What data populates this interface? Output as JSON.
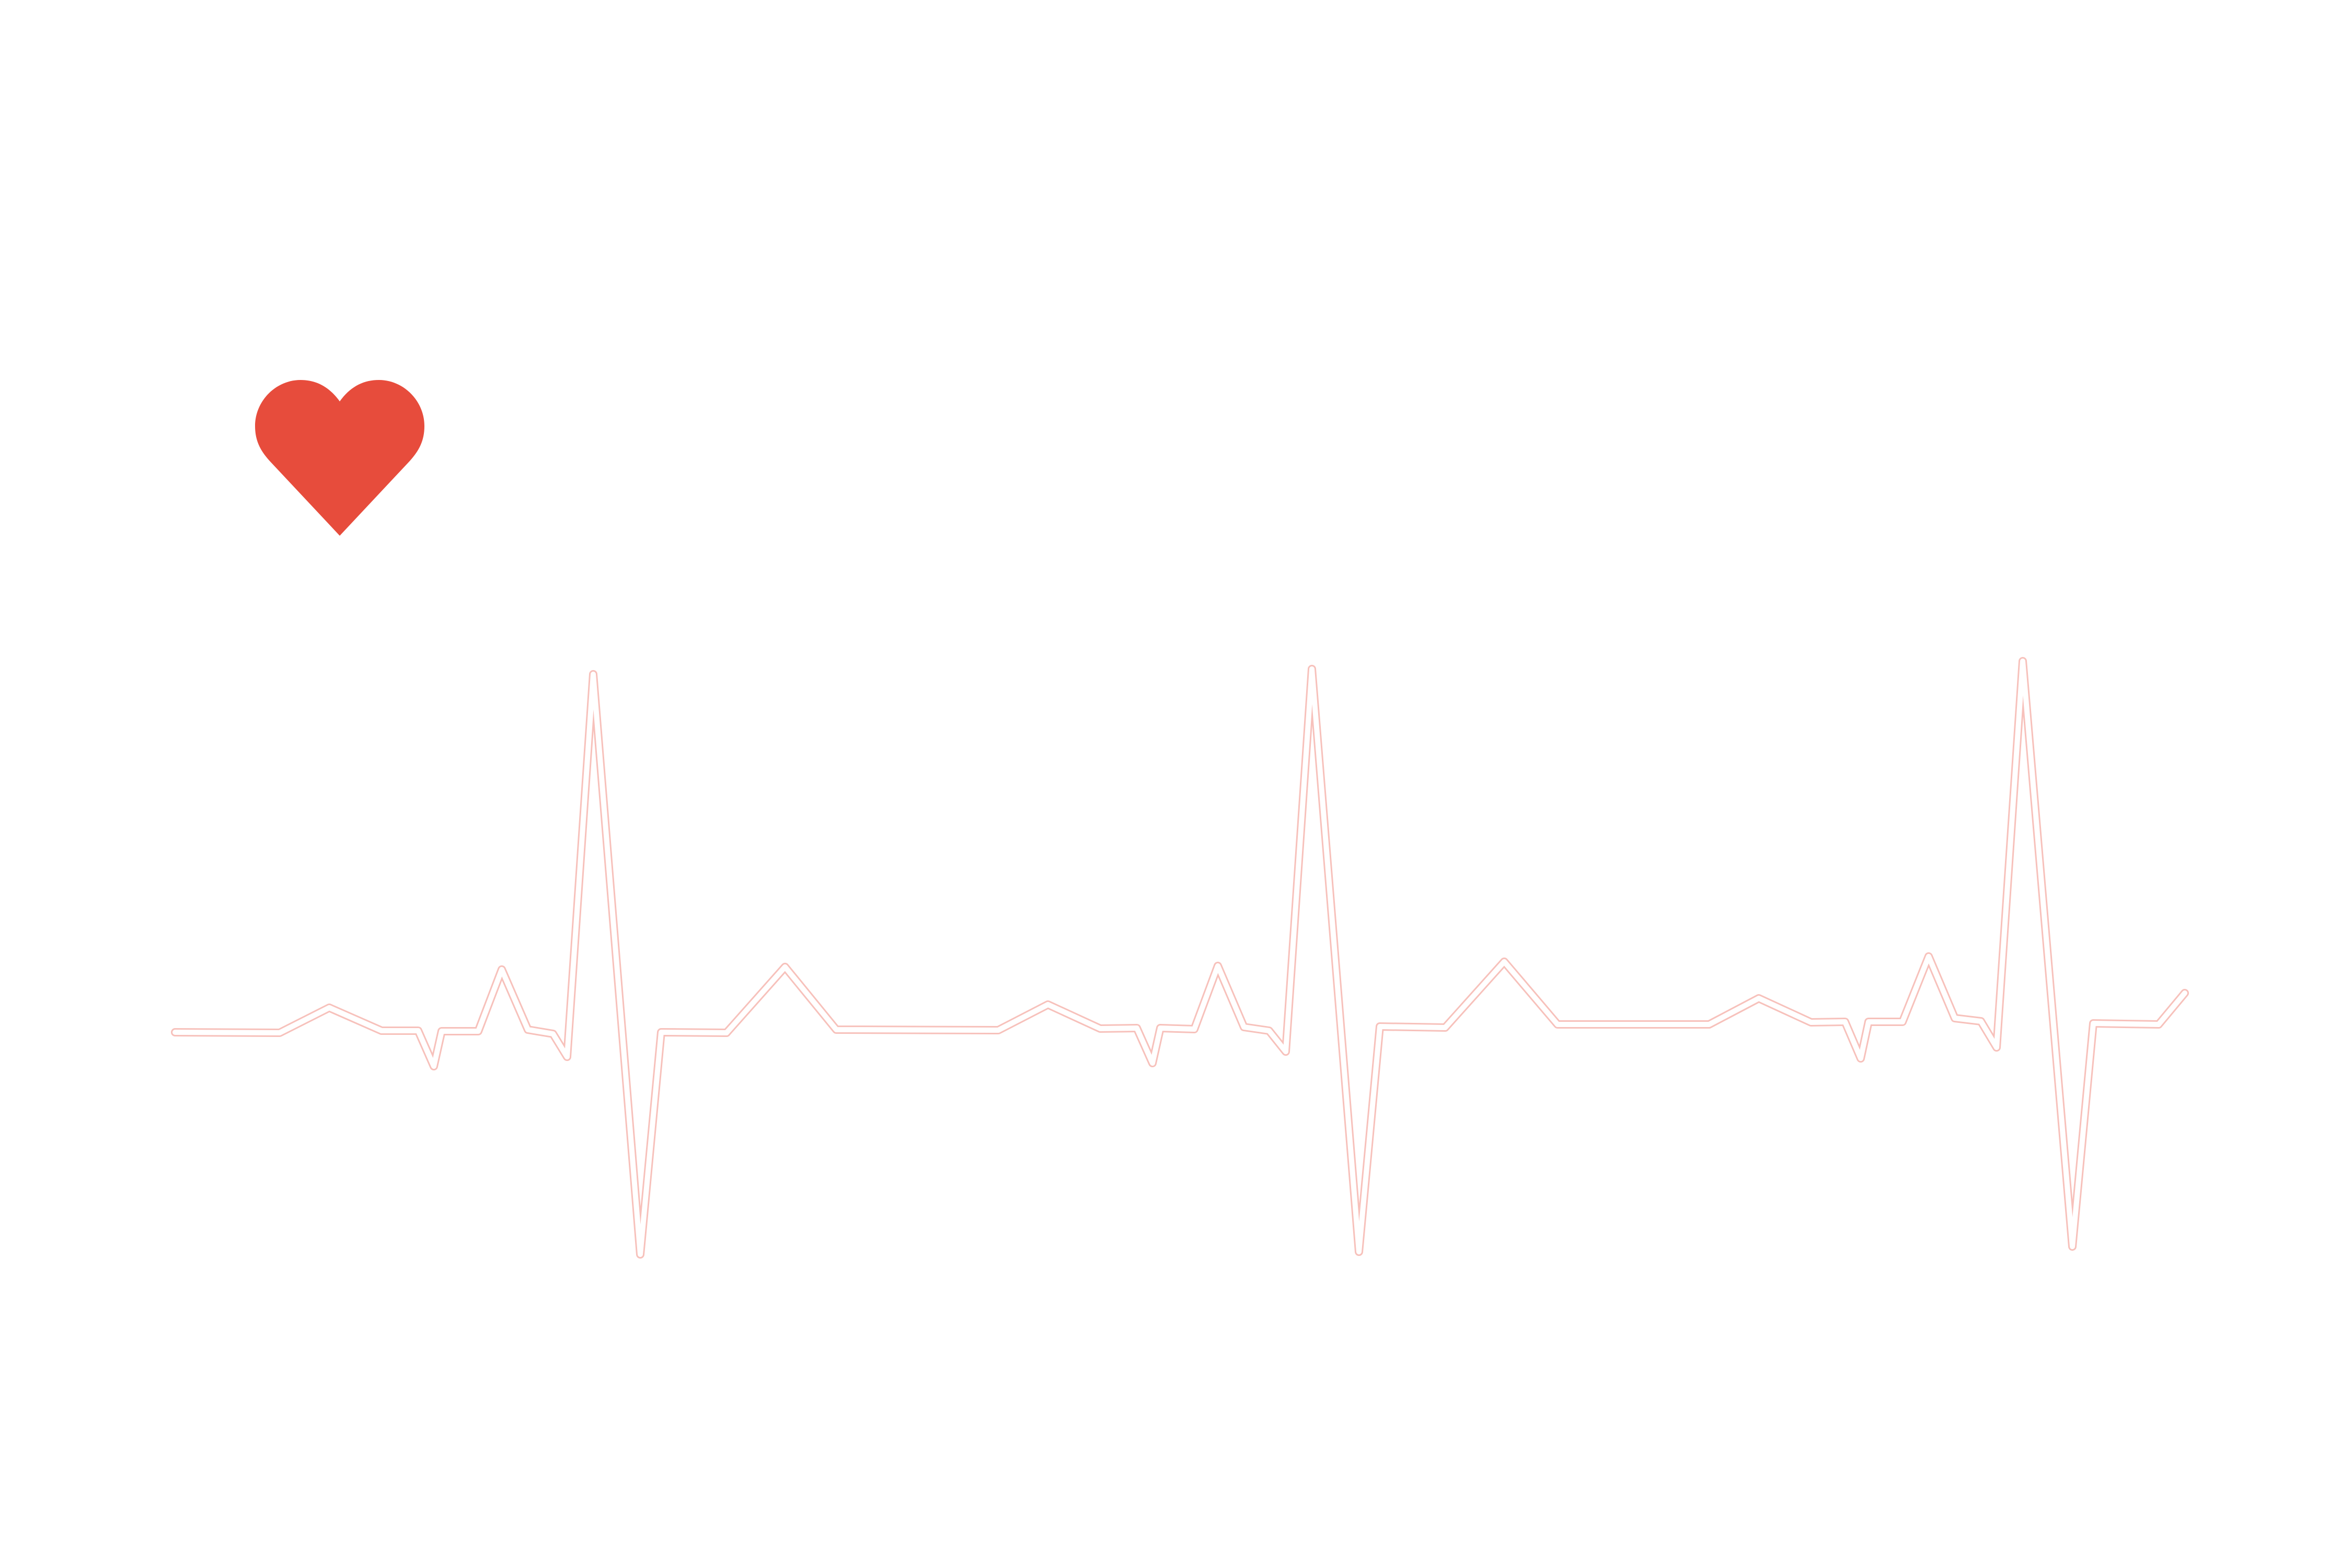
{
  "background_color": "#ffffff",
  "heart": {
    "icon": "heart-icon",
    "color": "#e74c3c"
  },
  "heartbeat_line": {
    "icon": "heartbeat-line-icon",
    "color": "#e74c3c",
    "beat_count": 3
  }
}
